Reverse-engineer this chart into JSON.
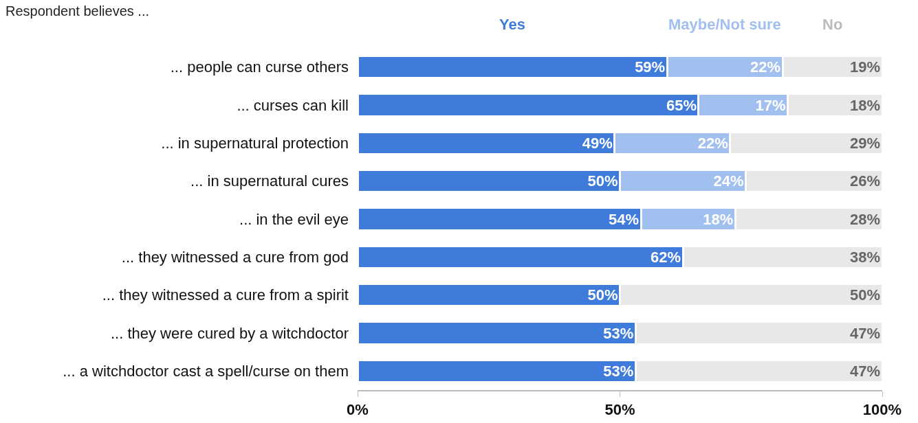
{
  "chart_data": {
    "type": "bar",
    "orientation": "horizontal",
    "stacked": true,
    "title": "Respondent believes ...",
    "categories": [
      "... people can curse others",
      "... curses can kill",
      "... in supernatural protection",
      "... in supernatural cures",
      "... in the evil eye",
      "... they witnessed a cure from god",
      "... they witnessed a cure from a spirit",
      "... they were cured by a witchdoctor",
      "... a witchdoctor cast a spell/curse on them"
    ],
    "series": [
      {
        "name": "Yes",
        "color": "#3f7bdb",
        "values": [
          59,
          65,
          49,
          50,
          54,
          62,
          50,
          53,
          53
        ],
        "value_labels": [
          "59%",
          "65%",
          "49%",
          "50%",
          "54%",
          "62%",
          "50%",
          "53%",
          "53%"
        ]
      },
      {
        "name": "Maybe/Not sure",
        "color": "#a2c0ef",
        "values": [
          22,
          17,
          22,
          24,
          18,
          null,
          null,
          null,
          null
        ],
        "value_labels": [
          "22%",
          "17%",
          "22%",
          "24%",
          "18%",
          null,
          null,
          null,
          null
        ]
      },
      {
        "name": "No",
        "color": "#e8e8e8",
        "values": [
          19,
          18,
          29,
          26,
          28,
          38,
          50,
          47,
          47
        ],
        "value_labels": [
          "19%",
          "18%",
          "29%",
          "26%",
          "28%",
          "38%",
          "50%",
          "47%",
          "47%"
        ]
      }
    ],
    "xlim": [
      0,
      100
    ],
    "xticks": [
      {
        "value": 0,
        "label": "0%"
      },
      {
        "value": 50,
        "label": "50%"
      },
      {
        "value": 100,
        "label": "100%"
      }
    ],
    "grid": false,
    "legend": false
  }
}
